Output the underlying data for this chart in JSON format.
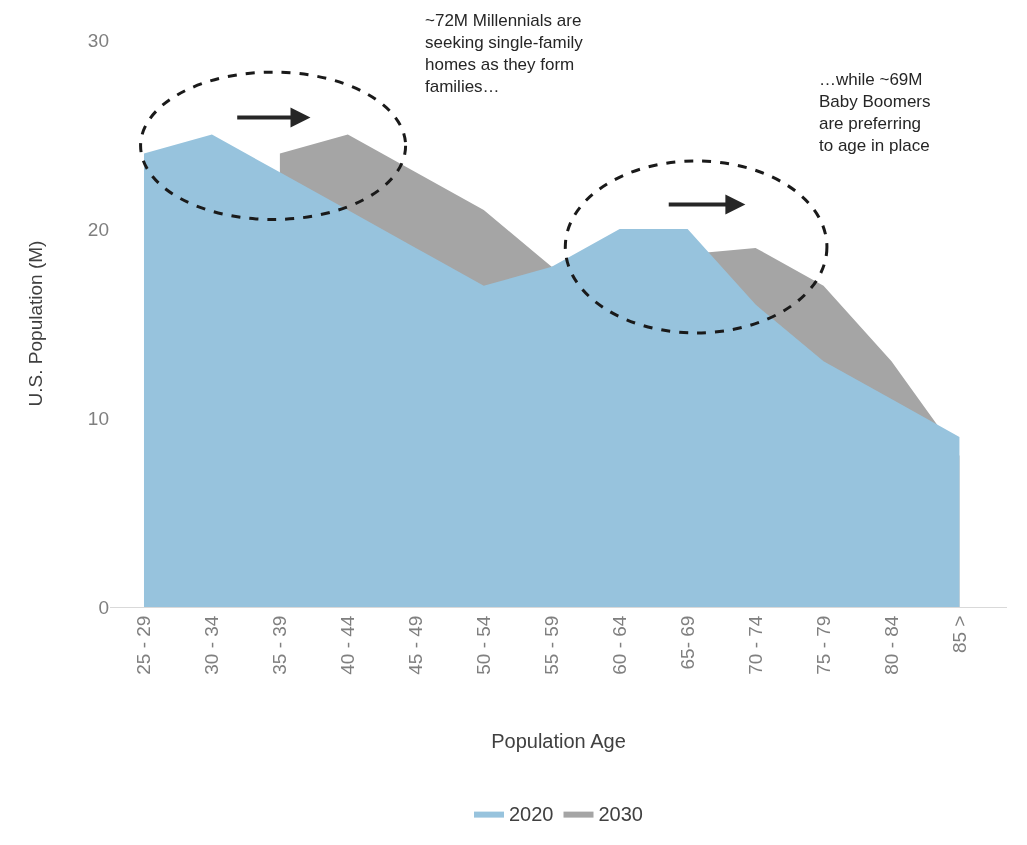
{
  "chart_data": {
    "type": "area",
    "xlabel": "Population Age",
    "ylabel": "U.S. Population (M)",
    "categories": [
      "25 - 29",
      "30 - 34",
      "35 - 39",
      "40 - 44",
      "45 - 49",
      "50 - 54",
      "55 - 59",
      "60 - 64",
      "65- 69",
      "70 - 74",
      "75 - 79",
      "80 - 84",
      "85 >"
    ],
    "series": [
      {
        "name": "2020",
        "color": "#97c3dd",
        "values": [
          24,
          25,
          23,
          21,
          19,
          17,
          18,
          20,
          20,
          16,
          13,
          11,
          9
        ]
      },
      {
        "name": "2030",
        "color": "#a5a5a5",
        "values": [
          null,
          null,
          24,
          25,
          23,
          21,
          18,
          null,
          null,
          19,
          17,
          13,
          8
        ]
      }
    ],
    "ylim": [
      0,
      30
    ],
    "yticks": [
      0,
      10,
      20,
      30
    ],
    "legend": "bottom",
    "annotations": [
      "~72M Millennials are seeking single-family homes as they form families…",
      "…while ~69M Baby Boomers are preferring to age in place"
    ]
  }
}
